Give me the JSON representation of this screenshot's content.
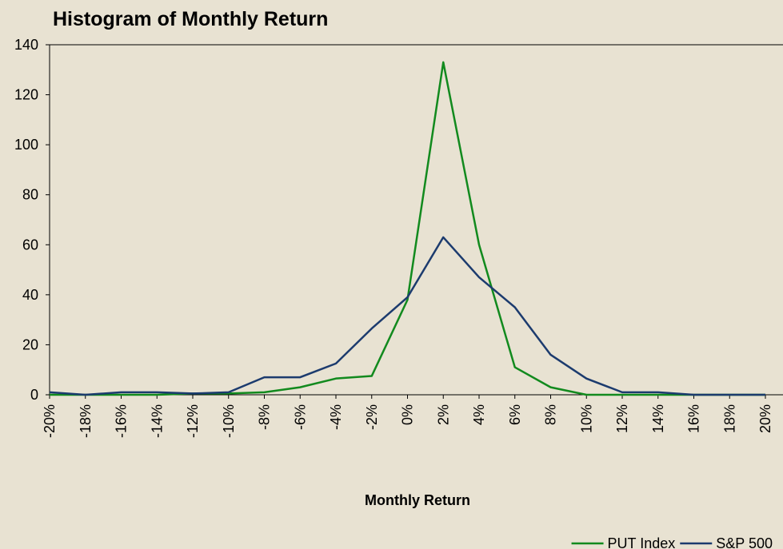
{
  "chart_data": {
    "type": "line",
    "title": "Histogram of Monthly Return",
    "xlabel": "Monthly Return",
    "categories": [
      "-20%",
      "-18%",
      "-16%",
      "-14%",
      "-12%",
      "-10%",
      "-8%",
      "-6%",
      "-4%",
      "-2%",
      "0%",
      "2%",
      "4%",
      "6%",
      "8%",
      "10%",
      "12%",
      "14%",
      "16%",
      "18%",
      "20%"
    ],
    "series": [
      {
        "name": "PUT Index",
        "color": "#128a1e",
        "values": [
          0,
          0,
          0,
          0,
          0.5,
          0.5,
          1,
          3,
          6.5,
          7.5,
          38,
          133,
          60,
          11,
          3,
          0,
          0,
          0,
          0,
          0,
          0
        ]
      },
      {
        "name": "S&P 500",
        "color": "#1c3b6e",
        "values": [
          1,
          0,
          1,
          1,
          0.5,
          1,
          7,
          7,
          12.5,
          26.5,
          39,
          63,
          47,
          35,
          16,
          6.5,
          1,
          1,
          0,
          0,
          0
        ]
      }
    ],
    "ylim": [
      0,
      140
    ],
    "yticks": [
      0,
      20,
      40,
      60,
      80,
      100,
      120,
      140
    ],
    "grid": false,
    "legend": "bottom-right"
  }
}
